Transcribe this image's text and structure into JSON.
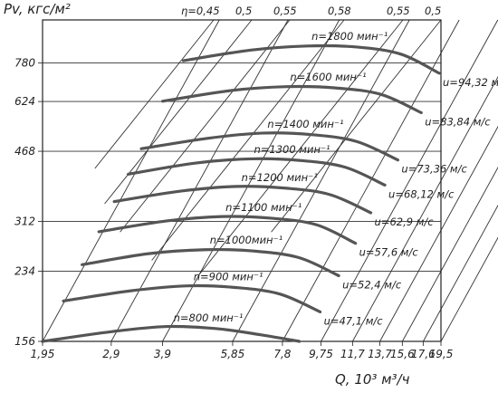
{
  "chart_data": {
    "type": "line",
    "title": "",
    "ylabel": "Pv, кгс/м²",
    "xlabel": "Q, 10³ м³/ч",
    "x_scale": "log",
    "y_scale": "log",
    "xlim": [
      1.95,
      19.5
    ],
    "ylim": [
      156,
      1000
    ],
    "x_ticks": [
      "1,95",
      "2,9",
      "3,9",
      "5,85",
      "7,8",
      "9,75",
      "11,7",
      "13,7",
      "15,6",
      "17,6",
      "19,5"
    ],
    "x_tick_values": [
      1.95,
      2.9,
      3.9,
      5.85,
      7.8,
      9.75,
      11.7,
      13.7,
      15.6,
      17.6,
      19.5
    ],
    "y_ticks": [
      "780",
      "624",
      "468",
      "312",
      "234",
      "156"
    ],
    "y_tick_values": [
      780,
      624,
      468,
      312,
      234,
      156
    ],
    "efficiency_labels": [
      "η=0,45",
      "0,5",
      "0,55",
      "0,58",
      "0,55",
      "0,5"
    ],
    "series": [
      {
        "name": "n=1800 мин⁻¹",
        "speed_label": "u=94,32 м/с",
        "x": [
          4.4,
          6.5,
          9.0,
          12.0,
          15.5,
          19.3
        ],
        "y": [
          790,
          840,
          860,
          855,
          820,
          735
        ]
      },
      {
        "name": "n=1600 мин⁻¹",
        "speed_label": "u=83,84 м/с",
        "x": [
          3.9,
          5.8,
          8.0,
          10.6,
          13.8,
          17.4
        ],
        "y": [
          625,
          665,
          680,
          675,
          650,
          585
        ]
      },
      {
        "name": "n=1400 мин⁻¹",
        "speed_label": "u=73,36 м/с",
        "x": [
          3.45,
          5.1,
          7.0,
          9.3,
          12.0,
          15.2
        ],
        "y": [
          475,
          505,
          520,
          515,
          495,
          445
        ]
      },
      {
        "name": "n=1300 мин⁻¹",
        "speed_label": "u=68,12 м/с",
        "x": [
          3.2,
          4.7,
          6.5,
          8.6,
          11.2,
          14.1
        ],
        "y": [
          410,
          437,
          448,
          444,
          427,
          385
        ]
      },
      {
        "name": "n=1200 мин⁻¹",
        "speed_label": "u=62,9 м/с",
        "x": [
          2.95,
          4.35,
          6.0,
          8.0,
          10.3,
          13.0
        ],
        "y": [
          350,
          372,
          382,
          378,
          364,
          328
        ]
      },
      {
        "name": "n=1100 мин⁻¹",
        "speed_label": "u=57,6 м/с",
        "x": [
          2.7,
          4.0,
          5.5,
          7.3,
          9.5,
          11.9
        ],
        "y": [
          294,
          313,
          321,
          318,
          306,
          275
        ]
      },
      {
        "name": "n=1000мин⁻¹",
        "speed_label": "u=52,4 м/с",
        "x": [
          2.45,
          3.6,
          5.0,
          6.6,
          8.6,
          10.8
        ],
        "y": [
          243,
          259,
          265,
          263,
          253,
          228
        ]
      },
      {
        "name": "n=900 мин⁻¹",
        "speed_label": "u=47,1 м/с",
        "x": [
          2.2,
          3.25,
          4.5,
          5.95,
          7.7,
          9.7
        ],
        "y": [
          197,
          209,
          215,
          213,
          205,
          185
        ]
      },
      {
        "name": "n=800 мин⁻¹",
        "speed_label": "",
        "x": [
          1.95,
          2.9,
          4.0,
          5.3,
          6.9,
          8.6
        ],
        "y": [
          156,
          165,
          170,
          168,
          162,
          146
        ]
      }
    ]
  }
}
